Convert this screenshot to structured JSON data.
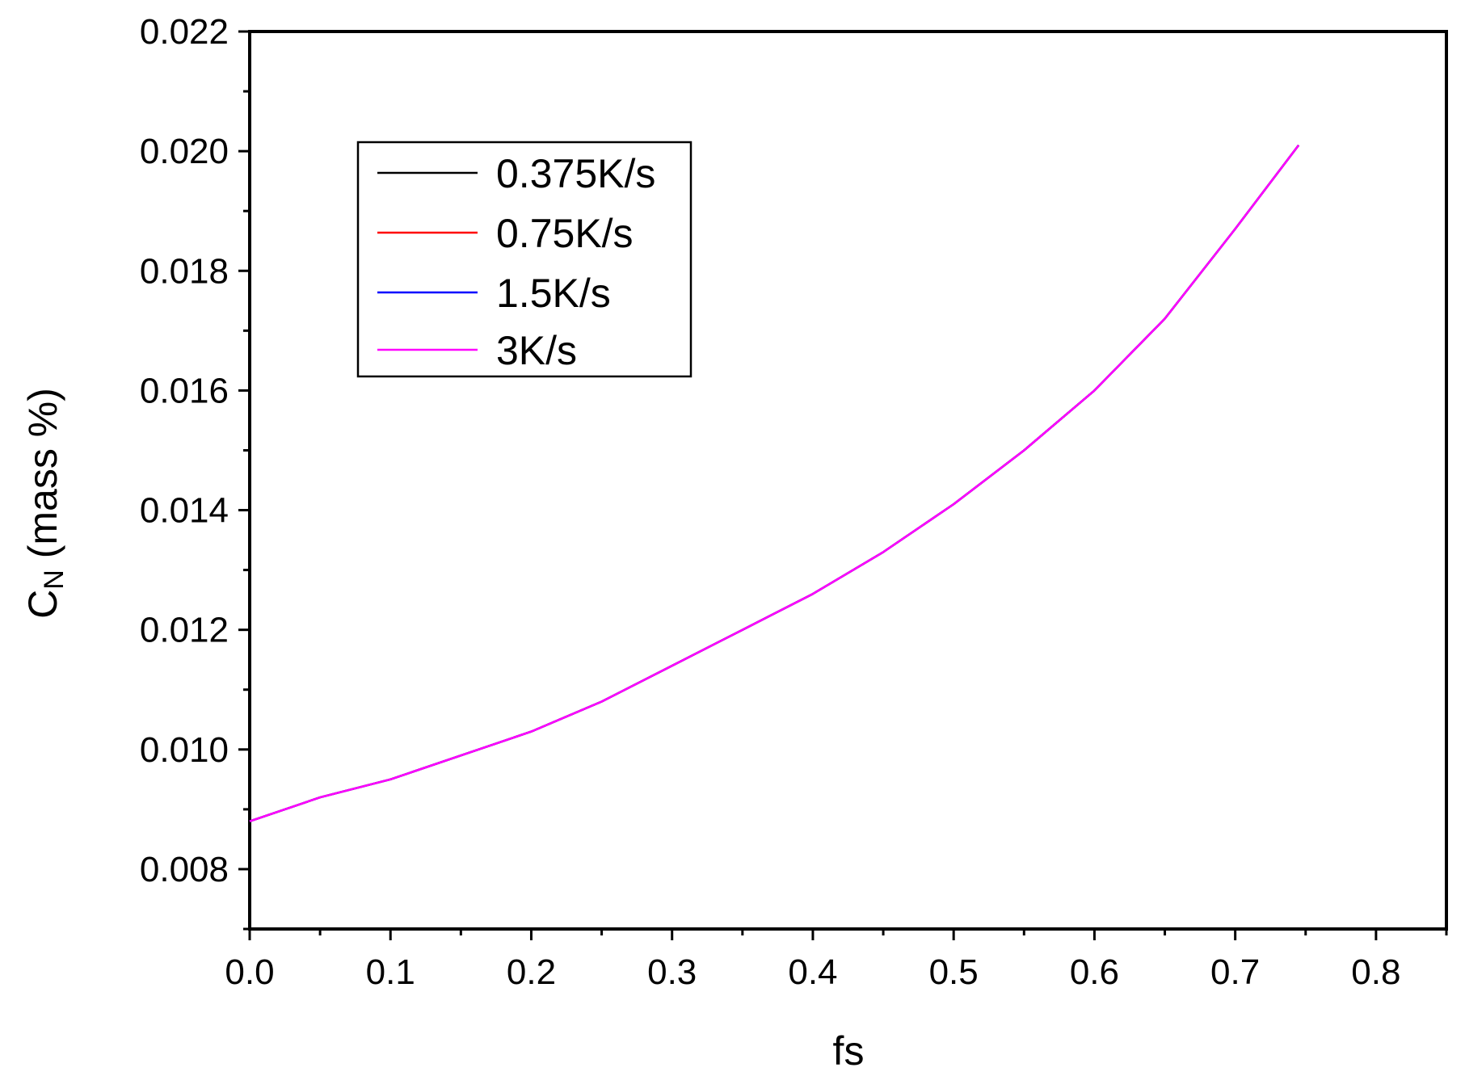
{
  "chart_data": {
    "type": "line",
    "title": "",
    "xlabel": "fs",
    "ylabel_main": "C",
    "ylabel_sub": "N",
    "ylabel_rest": " (mass %)",
    "xlim": [
      0.0,
      0.85
    ],
    "ylim": [
      0.007,
      0.022
    ],
    "x_ticks": [
      "0.0",
      "0.1",
      "0.2",
      "0.3",
      "0.4",
      "0.5",
      "0.6",
      "0.7",
      "0.8"
    ],
    "x_tick_values": [
      0.0,
      0.1,
      0.2,
      0.3,
      0.4,
      0.5,
      0.6,
      0.7,
      0.8
    ],
    "y_ticks": [
      "0.008",
      "0.010",
      "0.012",
      "0.014",
      "0.016",
      "0.018",
      "0.020",
      "0.022"
    ],
    "y_tick_values": [
      0.008,
      0.01,
      0.012,
      0.014,
      0.016,
      0.018,
      0.02,
      0.022
    ],
    "grid": false,
    "legend_position": "top-left",
    "x": [
      0.0,
      0.05,
      0.1,
      0.15,
      0.2,
      0.25,
      0.3,
      0.35,
      0.4,
      0.45,
      0.5,
      0.55,
      0.6,
      0.65,
      0.7,
      0.745
    ],
    "series": [
      {
        "name": "0.375K/s",
        "color": "#000000",
        "values": [
          0.0088,
          0.0092,
          0.0095,
          0.0099,
          0.0103,
          0.0108,
          0.0114,
          0.012,
          0.0126,
          0.0133,
          0.0141,
          0.015,
          0.016,
          0.0172,
          0.0187,
          0.0201
        ]
      },
      {
        "name": "0.75K/s",
        "color": "#ff0000",
        "values": [
          0.0088,
          0.0092,
          0.0095,
          0.0099,
          0.0103,
          0.0108,
          0.0114,
          0.012,
          0.0126,
          0.0133,
          0.0141,
          0.015,
          0.016,
          0.0172,
          0.0187,
          0.0201
        ]
      },
      {
        "name": "1.5K/s",
        "color": "#0000ff",
        "values": [
          0.0088,
          0.0092,
          0.0095,
          0.0099,
          0.0103,
          0.0108,
          0.0114,
          0.012,
          0.0126,
          0.0133,
          0.0141,
          0.015,
          0.016,
          0.0172,
          0.0187,
          0.0201
        ]
      },
      {
        "name": "3K/s",
        "color": "#ff00ff",
        "values": [
          0.0088,
          0.0092,
          0.0095,
          0.0099,
          0.0103,
          0.0108,
          0.0114,
          0.012,
          0.0126,
          0.0133,
          0.0141,
          0.015,
          0.016,
          0.0172,
          0.0187,
          0.0201
        ]
      }
    ]
  }
}
